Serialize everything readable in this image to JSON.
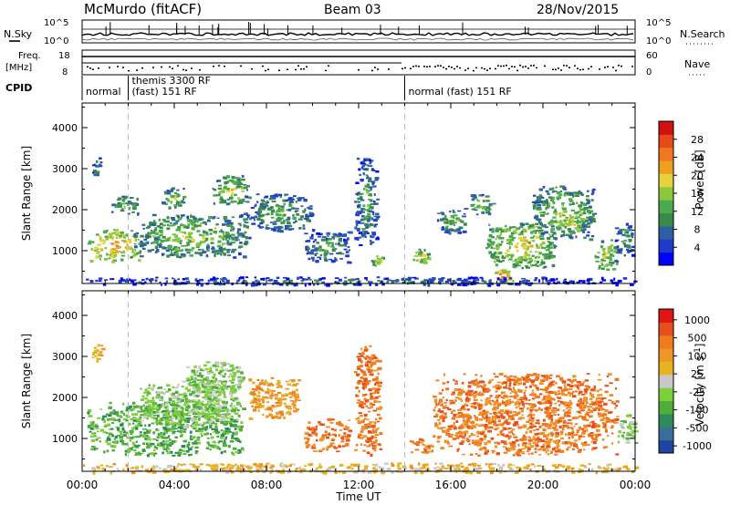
{
  "header": {
    "station": "McMurdo (fitACF)",
    "beam": "Beam 03",
    "date": "28/Nov/2015"
  },
  "top_panels": {
    "nsky_label": "N.Sky",
    "nsky_ticks": [
      "10^5",
      "10^0"
    ],
    "nsearch_label": "N.Search",
    "nsearch_ticks": [
      "10^5",
      "10^0"
    ],
    "freq_label_1": "Freq.",
    "freq_label_2": "[MHz]",
    "freq_ticks": [
      "18",
      "8"
    ],
    "nave_label": "Nave",
    "nave_ticks": [
      "60",
      "0"
    ],
    "cpid_label": "CPID",
    "cpid_segments": [
      {
        "start_hour": 0,
        "end_hour": 2,
        "label_1": "normal",
        "label_2": ""
      },
      {
        "start_hour": 2,
        "end_hour": 14,
        "label_1": "themis 3300 RF",
        "label_2": "(fast) 151 RF"
      },
      {
        "start_hour": 14,
        "end_hour": 24,
        "label_1": "normal (fast) 151 RF",
        "label_2": ""
      }
    ]
  },
  "chart_data": [
    {
      "type": "heatmap",
      "parameter": "power",
      "xlabel": "",
      "ylabel": "Slant Range [km]",
      "x_ticks": [
        "00:00",
        "04:00",
        "08:00",
        "12:00",
        "16:00",
        "20:00",
        "00:00"
      ],
      "xlim_hours": [
        0,
        24
      ],
      "ylim": [
        200,
        4600
      ],
      "y_ticks": [
        1000,
        2000,
        3000,
        4000
      ],
      "colorbar": {
        "label": "Power [dB]",
        "range": [
          0,
          32
        ],
        "tick_labels": [
          "28",
          "24",
          "20",
          "16",
          "12",
          "8",
          "4"
        ],
        "colors": [
          "#0000ff",
          "#1e3cc8",
          "#2e5fa3",
          "#3a8a4a",
          "#4aaa50",
          "#8cc83c",
          "#e6d23c",
          "#f0a020",
          "#f07820",
          "#e64a19",
          "#d21010"
        ]
      },
      "regions": [
        {
          "t0": 0.2,
          "t1": 2.6,
          "r0": 750,
          "r1": 1550,
          "level": 20
        },
        {
          "t0": 0.4,
          "t1": 0.8,
          "r0": 2800,
          "r1": 3300,
          "level": 9
        },
        {
          "t0": 1.2,
          "t1": 2.4,
          "r0": 1900,
          "r1": 2350,
          "level": 12
        },
        {
          "t0": 2.2,
          "t1": 7.2,
          "r0": 850,
          "r1": 1900,
          "level": 14
        },
        {
          "t0": 3.4,
          "t1": 4.4,
          "r0": 2050,
          "r1": 2550,
          "level": 14
        },
        {
          "t0": 5.6,
          "t1": 7.2,
          "r0": 2150,
          "r1": 2850,
          "level": 15
        },
        {
          "t0": 7.0,
          "t1": 10.0,
          "r0": 1500,
          "r1": 2400,
          "level": 11
        },
        {
          "t0": 9.6,
          "t1": 11.6,
          "r0": 700,
          "r1": 1500,
          "level": 10
        },
        {
          "t0": 11.8,
          "t1": 12.8,
          "r0": 1100,
          "r1": 3300,
          "level": 10
        },
        {
          "t0": 12.5,
          "t1": 13.1,
          "r0": 650,
          "r1": 950,
          "level": 16
        },
        {
          "t0": 14.2,
          "t1": 15.1,
          "r0": 700,
          "r1": 1050,
          "level": 17
        },
        {
          "t0": 15.4,
          "t1": 16.6,
          "r0": 1450,
          "r1": 2050,
          "level": 12
        },
        {
          "t0": 16.8,
          "t1": 17.8,
          "r0": 1900,
          "r1": 2400,
          "level": 14
        },
        {
          "t0": 17.5,
          "t1": 20.5,
          "r0": 600,
          "r1": 1700,
          "level": 17
        },
        {
          "t0": 19.5,
          "t1": 22.2,
          "r0": 1300,
          "r1": 2600,
          "level": 14
        },
        {
          "t0": 20.7,
          "t1": 21.6,
          "r0": 1450,
          "r1": 1850,
          "level": 20
        },
        {
          "t0": 22.2,
          "t1": 23.2,
          "r0": 550,
          "r1": 1300,
          "level": 16
        },
        {
          "t0": 23.1,
          "t1": 23.9,
          "r0": 900,
          "r1": 1700,
          "level": 10
        },
        {
          "t0": 17.8,
          "t1": 18.6,
          "r0": 230,
          "r1": 560,
          "level": 24
        },
        {
          "t0": 0.0,
          "t1": 24.0,
          "r0": 180,
          "r1": 380,
          "level": 7
        }
      ]
    },
    {
      "type": "heatmap",
      "parameter": "velocity",
      "xlabel": "Time UT",
      "ylabel": "Slant Range [km]",
      "x_ticks": [
        "00:00",
        "04:00",
        "08:00",
        "12:00",
        "16:00",
        "20:00",
        "00:00"
      ],
      "xlim_hours": [
        0,
        24
      ],
      "ylim": [
        200,
        4600
      ],
      "y_ticks": [
        1000,
        2000,
        3000,
        4000
      ],
      "colorbar": {
        "label": "Velocity [m s^-1]",
        "tick_labels": [
          "1000",
          "500",
          "100",
          "25",
          "-25",
          "-100",
          "-500",
          "-1000"
        ],
        "colors": [
          "#1e46a0",
          "#3a6e9a",
          "#2e8a5a",
          "#4fae3a",
          "#7ccf3a",
          "#c8c8c8",
          "#e6b41e",
          "#f09628",
          "#f07a1e",
          "#e6501e",
          "#e01414"
        ]
      },
      "regions": [
        {
          "t0": 0.2,
          "t1": 7.0,
          "r0": 600,
          "r1": 1900,
          "level": 3
        },
        {
          "t0": 2.4,
          "t1": 6.8,
          "r0": 1300,
          "r1": 2500,
          "level": 4
        },
        {
          "t0": 4.5,
          "t1": 7.0,
          "r0": 2150,
          "r1": 2900,
          "level": 4
        },
        {
          "t0": 0.4,
          "t1": 0.9,
          "r0": 2900,
          "r1": 3300,
          "level": 6
        },
        {
          "t0": 7.2,
          "t1": 9.4,
          "r0": 1500,
          "r1": 2500,
          "level": 7
        },
        {
          "t0": 9.6,
          "t1": 11.6,
          "r0": 700,
          "r1": 1500,
          "level": 8
        },
        {
          "t0": 11.8,
          "t1": 12.9,
          "r0": 600,
          "r1": 3300,
          "level": 8
        },
        {
          "t0": 14.2,
          "t1": 15.2,
          "r0": 650,
          "r1": 1050,
          "level": 8
        },
        {
          "t0": 15.2,
          "t1": 23.2,
          "r0": 600,
          "r1": 2600,
          "level": 8
        },
        {
          "t0": 23.2,
          "t1": 24.0,
          "r0": 900,
          "r1": 1600,
          "level": 4
        },
        {
          "t0": 0.0,
          "t1": 24.0,
          "r0": 180,
          "r1": 420,
          "level": 6
        }
      ]
    }
  ]
}
